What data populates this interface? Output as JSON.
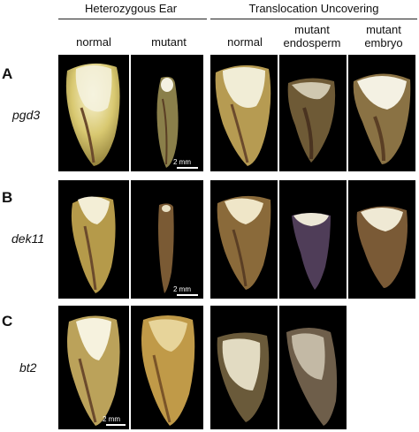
{
  "figure": {
    "groups": [
      {
        "label": "Heterozygous Ear"
      },
      {
        "label": "Translocation Uncovering"
      }
    ],
    "columns": [
      {
        "label": "normal"
      },
      {
        "label": "mutant"
      },
      {
        "label": "normal"
      },
      {
        "label": "mutant\nendosperm"
      },
      {
        "label": "mutant\nembryo"
      }
    ],
    "rows": [
      {
        "letter": "A",
        "gene": "pgd3",
        "scale": "2 mm"
      },
      {
        "letter": "B",
        "gene": "dek11",
        "scale": "2 mm"
      },
      {
        "letter": "C",
        "gene": "bt2",
        "scale": "2 mm"
      }
    ],
    "colors": {
      "panel_background": "#000000",
      "kernel_yellow": "#c9b35a",
      "starch_white": "#f2efdd",
      "embryo_brown": "#6b4a2c"
    }
  }
}
